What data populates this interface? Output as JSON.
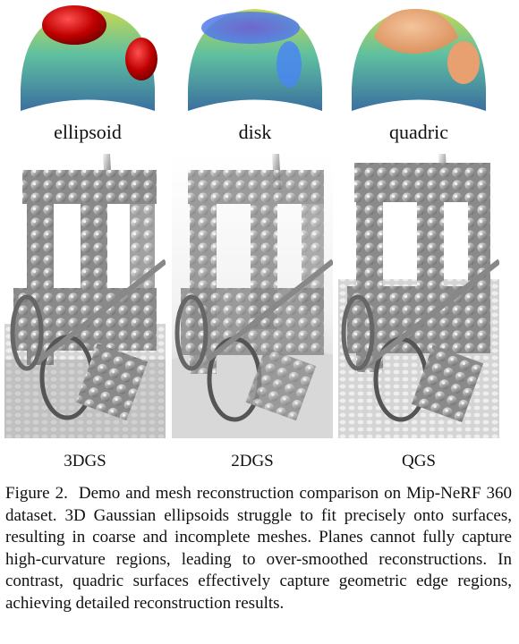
{
  "top_labels": [
    "ellipsoid",
    "disk",
    "quadric"
  ],
  "bottom_labels": [
    "3DGS",
    "2DGS",
    "QGS"
  ],
  "caption": {
    "label": "Figure 2.",
    "text": "Demo and mesh reconstruction comparison on Mip-NeRF 360 dataset. 3D Gaussian ellipsoids struggle to fit precisely onto surfaces, resulting in coarse and incomplete meshes. Planes cannot fully capture high-curvature regions, leading to over-smoothed reconstructions. In contrast, quadric surfaces effectively capture geometric edge regions, achieving detailed reconstruction results."
  },
  "colors": {
    "ellipsoid_fill": "#c00000",
    "disk_fill": "#3a6fe0",
    "quadric_fill": "#e8a070",
    "surface_top": "#c8d850",
    "surface_mid": "#5fc0a0",
    "surface_bottom": "#3a6f9f"
  },
  "icons": [
    "ellipsoid-splat-illustration",
    "disk-splat-illustration",
    "quadric-splat-illustration",
    "mesh-render-3dgs",
    "mesh-render-2dgs",
    "mesh-render-qgs"
  ]
}
